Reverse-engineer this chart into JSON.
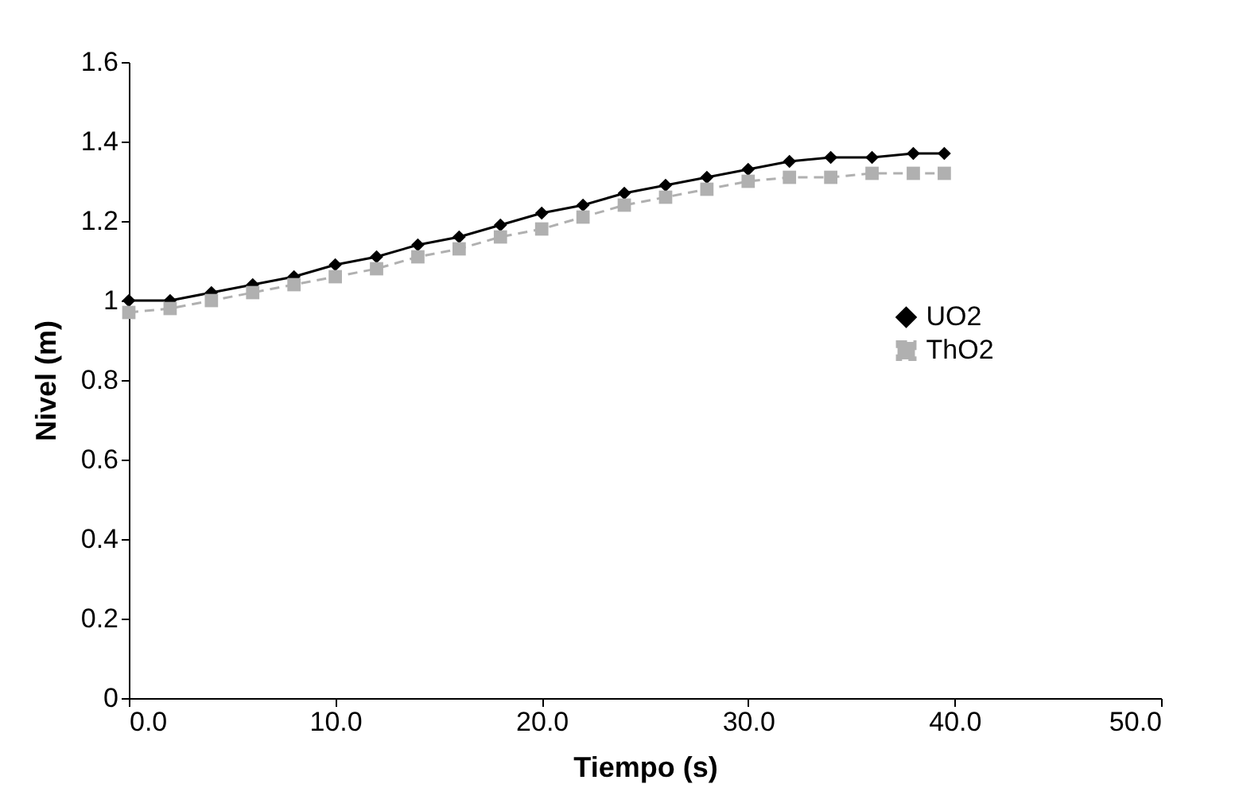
{
  "chart_data": {
    "type": "line",
    "xlabel": "Tiempo (s)",
    "ylabel": "Nivel (m)",
    "x": [
      0,
      2,
      4,
      6,
      8,
      10,
      12,
      14,
      16,
      18,
      20,
      22,
      24,
      26,
      28,
      30,
      32,
      34,
      36,
      38,
      39.5
    ],
    "series": [
      {
        "name": "UO2",
        "color": "#000000",
        "marker": "diamond",
        "line_style": "solid",
        "values": [
          1.0,
          1.0,
          1.02,
          1.04,
          1.06,
          1.09,
          1.11,
          1.14,
          1.16,
          1.19,
          1.22,
          1.24,
          1.27,
          1.29,
          1.31,
          1.33,
          1.35,
          1.36,
          1.36,
          1.37,
          1.37
        ]
      },
      {
        "name": "ThO2",
        "color": "#b0b0b0",
        "marker": "square",
        "line_style": "dashed",
        "values": [
          0.97,
          0.98,
          1.0,
          1.02,
          1.04,
          1.06,
          1.08,
          1.11,
          1.13,
          1.16,
          1.18,
          1.21,
          1.24,
          1.26,
          1.28,
          1.3,
          1.31,
          1.31,
          1.32,
          1.32,
          1.32
        ]
      }
    ],
    "xlim": [
      0,
      50
    ],
    "xticks": [
      {
        "value": 0,
        "label": "0.0"
      },
      {
        "value": 10,
        "label": "10.0"
      },
      {
        "value": 20,
        "label": "20.0"
      },
      {
        "value": 30,
        "label": "30.0"
      },
      {
        "value": 40,
        "label": "40.0"
      },
      {
        "value": 50,
        "label": "50.0"
      }
    ],
    "ylim": [
      0,
      1.6
    ],
    "yticks": [
      0,
      0.2,
      0.4,
      0.6,
      0.8,
      1,
      1.2,
      1.4,
      1.6
    ],
    "legend": "right",
    "grid": false
  }
}
